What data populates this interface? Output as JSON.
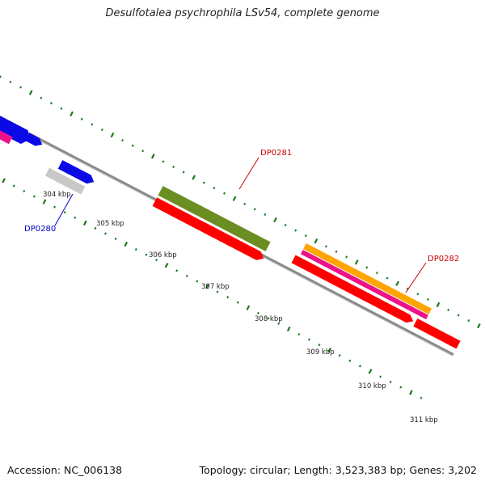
{
  "title": "Desulfotalea psychrophila LSv54, complete genome",
  "footer": {
    "accession": "Accession: NC_006138",
    "info": "Topology: circular; Length: 3,523,383 bp; Genes: 3,202"
  },
  "genome_map": {
    "ticks": [
      {
        "label": "304 kbp",
        "kbp": 304
      },
      {
        "label": "305 kbp",
        "kbp": 305
      },
      {
        "label": "306 kbp",
        "kbp": 306
      },
      {
        "label": "307 kbp",
        "kbp": 307
      },
      {
        "label": "308 kbp",
        "kbp": 308
      },
      {
        "label": "309 kbp",
        "kbp": 309
      },
      {
        "label": "310 kbp",
        "kbp": 310
      },
      {
        "label": "311 kbp",
        "kbp": 311
      }
    ],
    "gene_labels": [
      {
        "text": "DP0280",
        "color": "#0000cc"
      },
      {
        "text": "DP0281",
        "color": "#cc0000"
      },
      {
        "text": "DP0282",
        "color": "#cc0000"
      }
    ],
    "feature_colors": {
      "blue": "#0a0ae6",
      "magenta": "#ee1289",
      "gray": "#c8c8c8",
      "olive": "#6b8e23",
      "red": "#ff0000",
      "orange": "#ffa500",
      "backbone": "#888888",
      "gc_ticks": "#1a7a1a"
    }
  }
}
